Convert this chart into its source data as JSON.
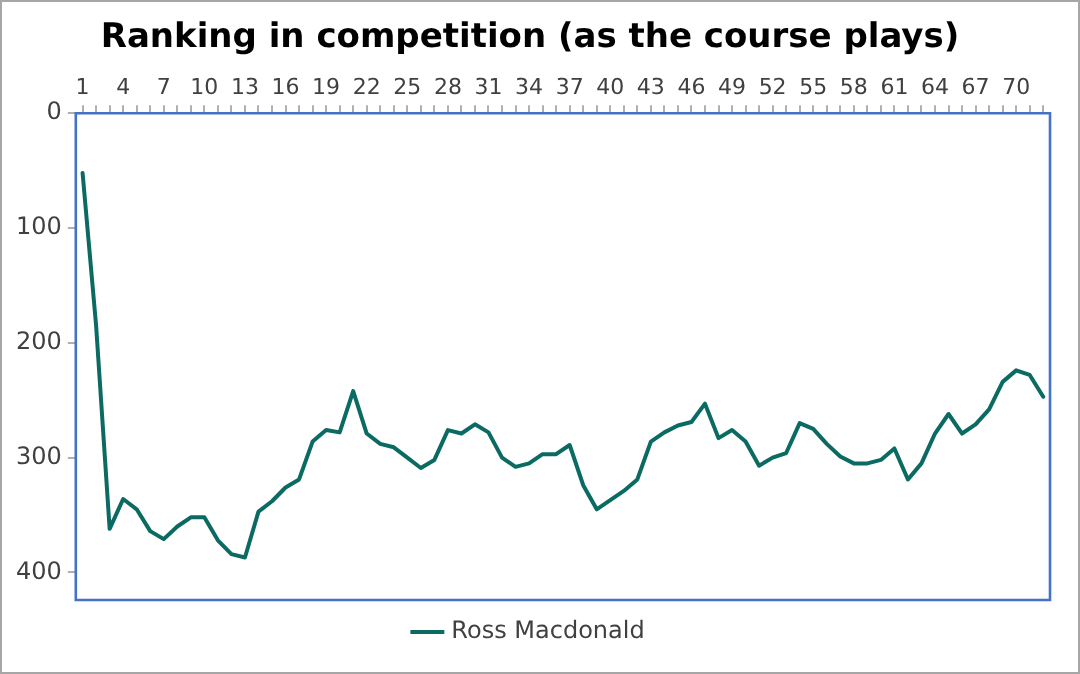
{
  "chart_data": {
    "type": "line",
    "title": "Ranking in competition (as the course plays)",
    "categories": [
      "1",
      null,
      null,
      "4",
      null,
      null,
      "7",
      null,
      null,
      "10",
      null,
      null,
      "13",
      null,
      null,
      "16",
      null,
      null,
      "19",
      null,
      null,
      "22",
      null,
      null,
      "25",
      null,
      null,
      "28",
      null,
      null,
      "31",
      null,
      null,
      "34",
      null,
      null,
      "37",
      null,
      null,
      "40",
      null,
      null,
      "43",
      null,
      null,
      "46",
      null,
      null,
      "49",
      null,
      null,
      "52",
      null,
      null,
      "55",
      null,
      null,
      "58",
      null,
      null,
      "61",
      null,
      null,
      "64",
      null,
      null,
      "67",
      null,
      null,
      "70",
      null,
      null
    ],
    "series": [
      {
        "name": "Ross Macdonald",
        "color": "#0b6b63",
        "values": [
          52,
          185,
          362,
          336,
          345,
          364,
          371,
          360,
          352,
          352,
          372,
          384,
          387,
          347,
          338,
          326,
          319,
          286,
          276,
          278,
          242,
          279,
          288,
          291,
          300,
          309,
          302,
          276,
          279,
          271,
          278,
          300,
          308,
          305,
          297,
          297,
          289,
          324,
          345,
          337,
          329,
          319,
          286,
          278,
          272,
          269,
          253,
          283,
          276,
          286,
          307,
          300,
          296,
          270,
          275,
          288,
          299,
          305,
          305,
          302,
          292,
          319,
          305,
          279,
          262,
          279,
          271,
          258,
          234,
          224,
          228,
          247
        ]
      }
    ],
    "ylim": [
      424,
      0
    ],
    "yticks": [
      0,
      100,
      200,
      300,
      400
    ],
    "grid": false,
    "legend": "bottom",
    "marker": "none",
    "line_style": "solid"
  }
}
